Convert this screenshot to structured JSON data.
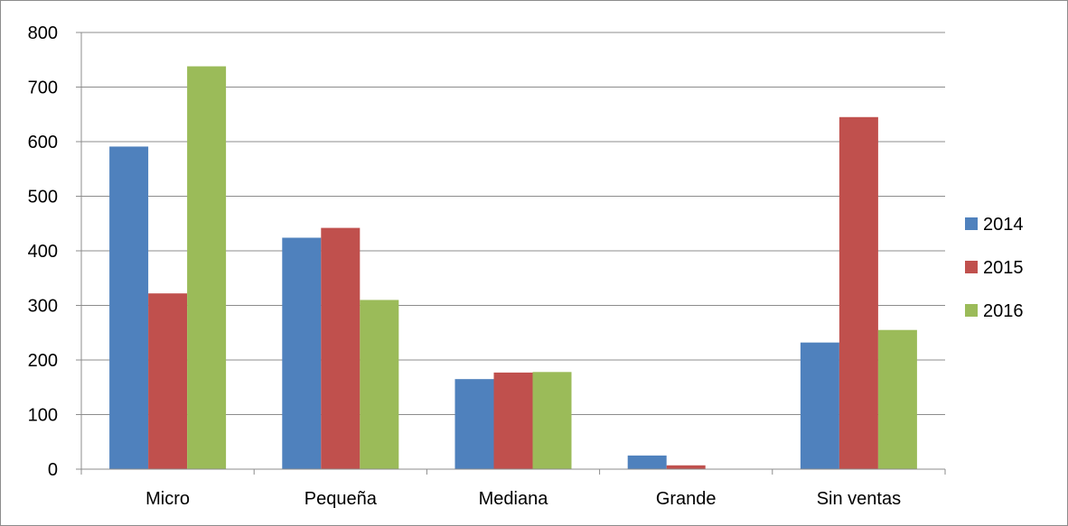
{
  "chart_data": {
    "type": "bar",
    "title": "",
    "xlabel": "",
    "ylabel": "",
    "ylim": [
      0,
      800
    ],
    "yticks": [
      0,
      100,
      200,
      300,
      400,
      500,
      600,
      700,
      800
    ],
    "grid": true,
    "legend_position": "right",
    "categories": [
      "Micro",
      "Pequeña",
      "Mediana",
      "Grande",
      "Sin ventas"
    ],
    "series": [
      {
        "name": "2014",
        "color": "#4f81bd",
        "values": [
          591,
          424,
          165,
          25,
          232
        ]
      },
      {
        "name": "2015",
        "color": "#c0504d",
        "values": [
          322,
          442,
          177,
          7,
          645
        ]
      },
      {
        "name": "2016",
        "color": "#9bbb59",
        "values": [
          738,
          310,
          178,
          0,
          255
        ]
      }
    ]
  }
}
